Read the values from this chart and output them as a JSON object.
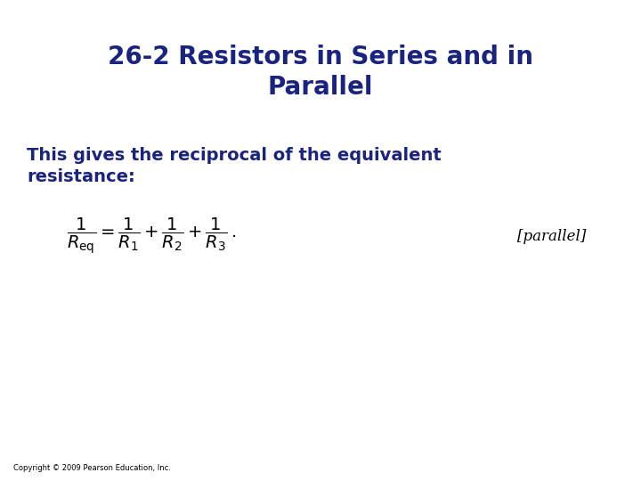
{
  "title_line1": "26-2 Resistors in Series and in",
  "title_line2": "Parallel",
  "title_color": "#1a237e",
  "title_fontsize": 20,
  "body_text": "This gives the reciprocal of the equivalent\nresistance:",
  "body_color": "#1a237e",
  "body_fontsize": 14,
  "equation_color": "#000000",
  "equation_fontsize": 14,
  "label_text": "[parallel]",
  "label_color": "#000000",
  "label_fontsize": 12,
  "copyright_text": "Copyright © 2009 Pearson Education, Inc.",
  "copyright_color": "#000000",
  "copyright_fontsize": 6,
  "background_color": "#ffffff"
}
